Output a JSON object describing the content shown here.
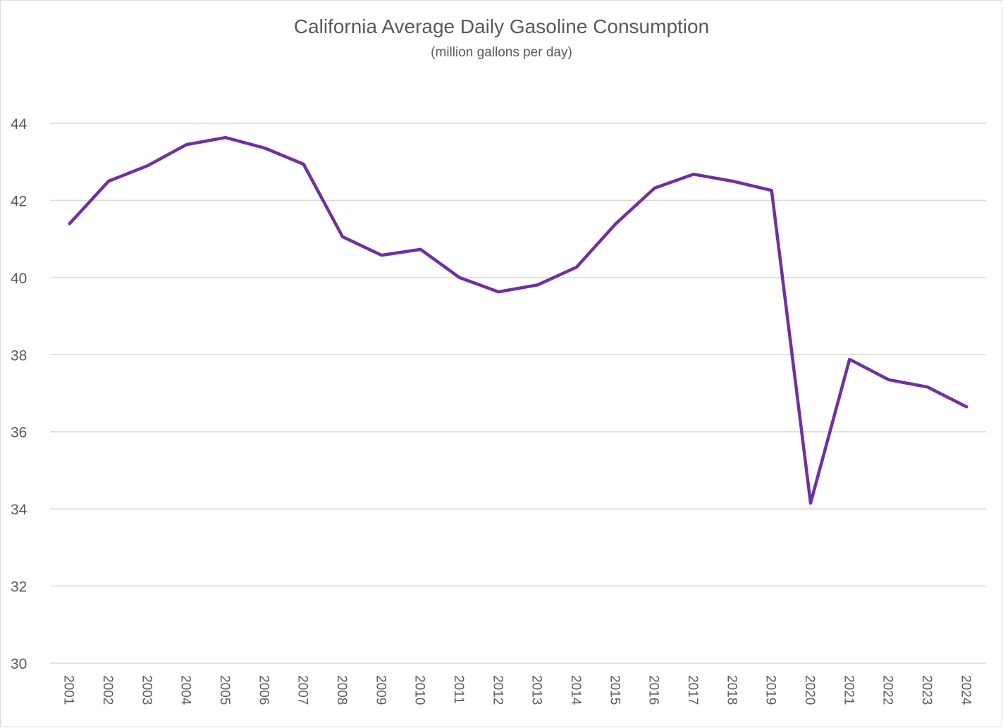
{
  "chart_data": {
    "type": "line",
    "title": "California Average Daily Gasoline Consumption",
    "subtitle": "(million gallons per day)",
    "xlabel": "",
    "ylabel": "",
    "ylim": [
      30,
      44
    ],
    "yticks": [
      30,
      32,
      34,
      36,
      38,
      40,
      42,
      44
    ],
    "grid": true,
    "legend": "none",
    "categories": [
      "2001",
      "2002",
      "2003",
      "2004",
      "2005",
      "2006",
      "2007",
      "2008",
      "2009",
      "2010",
      "2011",
      "2012",
      "2013",
      "2014",
      "2015",
      "2016",
      "2017",
      "2018",
      "2019",
      "2020",
      "2021",
      "2022",
      "2023",
      "2024"
    ],
    "series": [
      {
        "name": "California Average Daily Gasoline Consumption",
        "color": "#7030A0",
        "values": [
          41.4,
          42.5,
          42.9,
          43.45,
          43.63,
          43.36,
          42.94,
          41.06,
          40.58,
          40.73,
          40.0,
          39.63,
          39.81,
          40.27,
          41.39,
          42.32,
          42.68,
          42.5,
          42.26,
          34.15,
          37.88,
          37.35,
          37.16,
          36.65
        ]
      }
    ]
  },
  "colors": {
    "text": "#595959",
    "grid": "#d9d9d9",
    "border": "#d9d9d9"
  }
}
